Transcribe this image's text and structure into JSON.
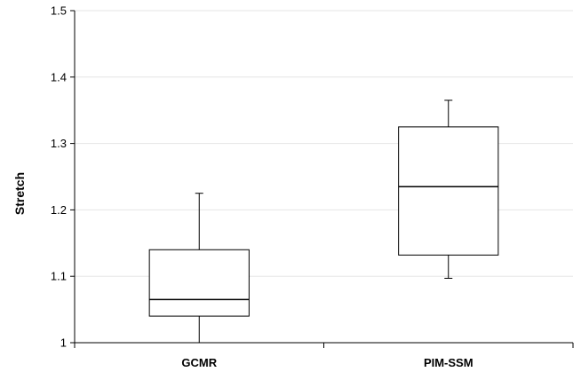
{
  "chart_data": {
    "type": "box",
    "title": "",
    "xlabel": "",
    "ylabel": "Stretch",
    "ylim": [
      1,
      1.5
    ],
    "yticks": [
      "1",
      "1.1",
      "1.2",
      "1.3",
      "1.4",
      "1.5"
    ],
    "grid": true,
    "legend": "none",
    "categories": [
      "GCMR",
      "PIM-SSM"
    ],
    "boxes": [
      {
        "min": 1.0,
        "q1": 1.04,
        "median": 1.065,
        "q3": 1.14,
        "max": 1.225
      },
      {
        "min": 1.097,
        "q1": 1.132,
        "median": 1.235,
        "q3": 1.325,
        "max": 1.365
      }
    ],
    "colors": {
      "box_fill": "#ffffff",
      "stroke": "#000000",
      "grid": "#e6e6e6"
    }
  }
}
